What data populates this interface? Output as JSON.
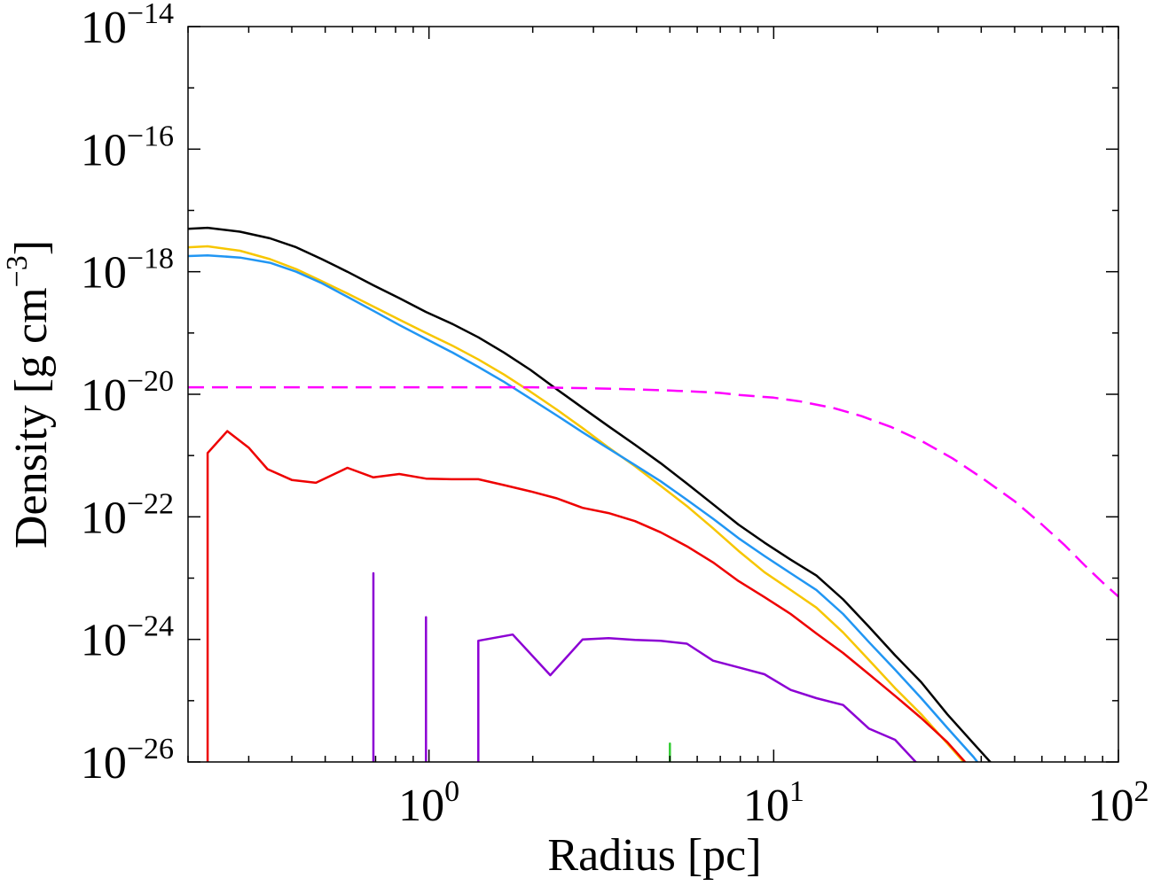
{
  "chart_data": {
    "type": "line",
    "title": "",
    "xlabel": "Radius [pc]",
    "ylabel": "Density [g cm−3]",
    "ylabel_main": "Density [g cm",
    "ylabel_sup": "−3",
    "ylabel_close": "]",
    "xscale": "log",
    "yscale": "log",
    "xlim": [
      0.2,
      100
    ],
    "ylim": [
      1e-26,
      1e-14
    ],
    "grid": false,
    "legend": "none",
    "x_ticks": [
      {
        "base": "10",
        "exp": "0",
        "value": 1
      },
      {
        "base": "10",
        "exp": "1",
        "value": 10
      },
      {
        "base": "10",
        "exp": "2",
        "value": 100
      }
    ],
    "y_ticks": [
      {
        "base": "10",
        "exp": "−26",
        "value": 1e-26
      },
      {
        "base": "10",
        "exp": "−24",
        "value": 1e-24
      },
      {
        "base": "10",
        "exp": "−22",
        "value": 1e-22
      },
      {
        "base": "10",
        "exp": "−20",
        "value": 1e-20
      },
      {
        "base": "10",
        "exp": "−18",
        "value": 1e-18
      },
      {
        "base": "10",
        "exp": "−16",
        "value": 1e-16
      },
      {
        "base": "10",
        "exp": "−14",
        "value": 1e-14
      }
    ],
    "series": [
      {
        "color": "#000000",
        "dash": "",
        "points": [
          [
            0.2,
            5e-18
          ],
          [
            0.228,
            5.2e-18
          ],
          [
            0.283,
            4.5e-18
          ],
          [
            0.346,
            3.5e-18
          ],
          [
            0.412,
            2.5e-18
          ],
          [
            0.489,
            1.6e-18
          ],
          [
            0.58,
            1e-18
          ],
          [
            0.69,
            6e-19
          ],
          [
            0.82,
            3.7e-19
          ],
          [
            0.98,
            2.2e-19
          ],
          [
            1.17,
            1.4e-19
          ],
          [
            1.39,
            8.5e-20
          ],
          [
            1.65,
            4.8e-20
          ],
          [
            1.97,
            2.5e-20
          ],
          [
            2.35,
            1.2e-20
          ],
          [
            2.79,
            6e-21
          ],
          [
            3.32,
            3e-21
          ],
          [
            3.96,
            1.5e-21
          ],
          [
            4.7,
            7.5e-22
          ],
          [
            5.6,
            3.5e-22
          ],
          [
            6.67,
            1.6e-22
          ],
          [
            7.9,
            7.5e-23
          ],
          [
            9.4,
            3.8e-23
          ],
          [
            11.2,
            2e-23
          ],
          [
            13.3,
            1.1e-23
          ],
          [
            15.9,
            4.5e-24
          ],
          [
            18.9,
            1.6e-24
          ],
          [
            22.5,
            5.5e-25
          ],
          [
            26.8,
            2e-25
          ],
          [
            31.9,
            6e-26
          ],
          [
            38,
            2e-26
          ],
          [
            45,
            7e-27
          ],
          [
            53.8,
            1e-27
          ]
        ]
      },
      {
        "color": "#f7c600",
        "dash": "",
        "points": [
          [
            0.2,
            2.5e-18
          ],
          [
            0.228,
            2.6e-18
          ],
          [
            0.283,
            2.2e-18
          ],
          [
            0.346,
            1.6e-18
          ],
          [
            0.412,
            1.1e-18
          ],
          [
            0.489,
            7e-19
          ],
          [
            0.58,
            4.4e-19
          ],
          [
            0.69,
            2.7e-19
          ],
          [
            0.82,
            1.65e-19
          ],
          [
            0.98,
            1e-19
          ],
          [
            1.17,
            6.2e-20
          ],
          [
            1.39,
            3.7e-20
          ],
          [
            1.65,
            2.1e-20
          ],
          [
            1.97,
            1.1e-20
          ],
          [
            2.35,
            5.6e-21
          ],
          [
            2.79,
            2.8e-21
          ],
          [
            3.32,
            1.35e-21
          ],
          [
            3.96,
            6.7e-22
          ],
          [
            4.7,
            3.2e-22
          ],
          [
            5.6,
            1.5e-22
          ],
          [
            6.67,
            6.5e-23
          ],
          [
            7.9,
            2.8e-23
          ],
          [
            9.4,
            1.25e-23
          ],
          [
            11.2,
            6.4e-24
          ],
          [
            13.3,
            3.3e-24
          ],
          [
            15.9,
            1.3e-24
          ],
          [
            18.9,
            4.6e-25
          ],
          [
            22.5,
            1.6e-25
          ],
          [
            26.8,
            6e-26
          ],
          [
            31.9,
            2e-26
          ],
          [
            38,
            6.5e-27
          ],
          [
            45,
            1.8e-27
          ]
        ]
      },
      {
        "color": "#2196f3",
        "dash": "",
        "points": [
          [
            0.2,
            1.8e-18
          ],
          [
            0.228,
            1.85e-18
          ],
          [
            0.283,
            1.7e-18
          ],
          [
            0.346,
            1.4e-18
          ],
          [
            0.412,
            1e-18
          ],
          [
            0.489,
            6.5e-19
          ],
          [
            0.58,
            3.9e-19
          ],
          [
            0.69,
            2.3e-19
          ],
          [
            0.82,
            1.35e-19
          ],
          [
            0.98,
            8e-20
          ],
          [
            1.17,
            4.8e-20
          ],
          [
            1.39,
            2.8e-20
          ],
          [
            1.65,
            1.6e-20
          ],
          [
            1.97,
            8.5e-21
          ],
          [
            2.35,
            4.5e-21
          ],
          [
            2.79,
            2.4e-21
          ],
          [
            3.32,
            1.3e-21
          ],
          [
            3.96,
            7e-22
          ],
          [
            4.7,
            3.8e-22
          ],
          [
            5.6,
            1.9e-22
          ],
          [
            6.67,
            9.3e-23
          ],
          [
            7.9,
            4.5e-23
          ],
          [
            9.4,
            2.3e-23
          ],
          [
            11.2,
            1.2e-23
          ],
          [
            13.3,
            6.4e-24
          ],
          [
            15.9,
            2.6e-24
          ],
          [
            18.9,
            9e-25
          ],
          [
            22.5,
            3.2e-25
          ],
          [
            26.8,
            1.1e-25
          ],
          [
            31.9,
            3.6e-26
          ],
          [
            38,
            1.2e-26
          ],
          [
            45,
            3.5e-27
          ]
        ]
      },
      {
        "color": "#ff00ff",
        "dash": "18,9",
        "points": [
          [
            0.2,
            1.3e-20
          ],
          [
            0.3,
            1.3e-20
          ],
          [
            0.5,
            1.3e-20
          ],
          [
            0.8,
            1.3e-20
          ],
          [
            1,
            1.3e-20
          ],
          [
            2,
            1.3e-20
          ],
          [
            3,
            1.25e-20
          ],
          [
            4,
            1.2e-20
          ],
          [
            5,
            1.15e-20
          ],
          [
            6,
            1.1e-20
          ],
          [
            7,
            1.05e-20
          ],
          [
            8,
            9.7e-21
          ],
          [
            10,
            8.8e-21
          ],
          [
            12,
            7.6e-21
          ],
          [
            15,
            5.9e-21
          ],
          [
            18,
            4.4e-21
          ],
          [
            22,
            2.9e-21
          ],
          [
            27,
            1.7e-21
          ],
          [
            33,
            9e-22
          ],
          [
            40,
            4.4e-22
          ],
          [
            50,
            1.8e-22
          ],
          [
            60,
            7.5e-23
          ],
          [
            70,
            3.4e-23
          ],
          [
            80,
            1.6e-23
          ],
          [
            90,
            8.5e-24
          ],
          [
            100,
            5e-24
          ]
        ]
      },
      {
        "color": "#ee0000",
        "dash": "",
        "points": [
          [
            0.228,
            1e-27
          ],
          [
            0.228,
            1.1e-21
          ],
          [
            0.26,
            2.5e-21
          ],
          [
            0.3,
            1.35e-21
          ],
          [
            0.34,
            6e-22
          ],
          [
            0.4,
            4e-22
          ],
          [
            0.47,
            3.6e-22
          ],
          [
            0.58,
            6.3e-22
          ],
          [
            0.69,
            4.4e-22
          ],
          [
            0.82,
            5e-22
          ],
          [
            0.98,
            4.2e-22
          ],
          [
            1.17,
            4.1e-22
          ],
          [
            1.39,
            4.1e-22
          ],
          [
            1.65,
            3.3e-22
          ],
          [
            1.97,
            2.6e-22
          ],
          [
            2.35,
            2e-22
          ],
          [
            2.79,
            1.4e-22
          ],
          [
            3.32,
            1.15e-22
          ],
          [
            3.96,
            8.5e-23
          ],
          [
            4.7,
            5.6e-23
          ],
          [
            5.6,
            3.3e-23
          ],
          [
            6.67,
            1.8e-23
          ],
          [
            7.9,
            9e-24
          ],
          [
            9.4,
            4.9e-24
          ],
          [
            11.2,
            2.6e-24
          ],
          [
            13.3,
            1.25e-24
          ],
          [
            15.9,
            6e-25
          ],
          [
            18.9,
            2.7e-25
          ],
          [
            22.5,
            1.2e-25
          ],
          [
            26.8,
            5.2e-26
          ],
          [
            31.9,
            2.1e-26
          ],
          [
            38,
            7e-27
          ],
          [
            45,
            2.5e-27
          ]
        ]
      },
      {
        "color": "#8c00d4",
        "dash": "",
        "points": [
          [
            0.69,
            1e-27
          ],
          [
            0.69,
            1.2e-23
          ],
          [
            0.69,
            1e-27
          ]
        ]
      },
      {
        "color": "#8c00d4",
        "dash": "",
        "points": [
          [
            0.98,
            1e-27
          ],
          [
            0.98,
            2.3e-24
          ],
          [
            0.98,
            1e-27
          ]
        ]
      },
      {
        "color": "#8c00d4",
        "dash": "",
        "points": [
          [
            1.39,
            1e-27
          ],
          [
            1.39,
            9.5e-25
          ],
          [
            1.75,
            1.2e-24
          ],
          [
            2.25,
            2.6e-25
          ],
          [
            2.79,
            1e-24
          ],
          [
            3.32,
            1.05e-24
          ],
          [
            3.96,
            9.8e-25
          ],
          [
            4.7,
            9.5e-25
          ],
          [
            5.6,
            8.5e-25
          ],
          [
            6.67,
            4.5e-25
          ],
          [
            7.9,
            3.5e-25
          ],
          [
            9.4,
            2.7e-25
          ],
          [
            11.2,
            1.5e-25
          ],
          [
            13.3,
            1.1e-25
          ],
          [
            15.9,
            8.5e-26
          ],
          [
            18.9,
            3.5e-26
          ],
          [
            22.5,
            2.3e-26
          ],
          [
            26.8,
            8e-27
          ],
          [
            31.9,
            2e-27
          ]
        ]
      },
      {
        "color": "#33cc33",
        "dash": "",
        "points": [
          [
            5.0,
            1e-27
          ],
          [
            5.0,
            2e-26
          ],
          [
            5.0,
            1e-27
          ]
        ]
      }
    ]
  }
}
